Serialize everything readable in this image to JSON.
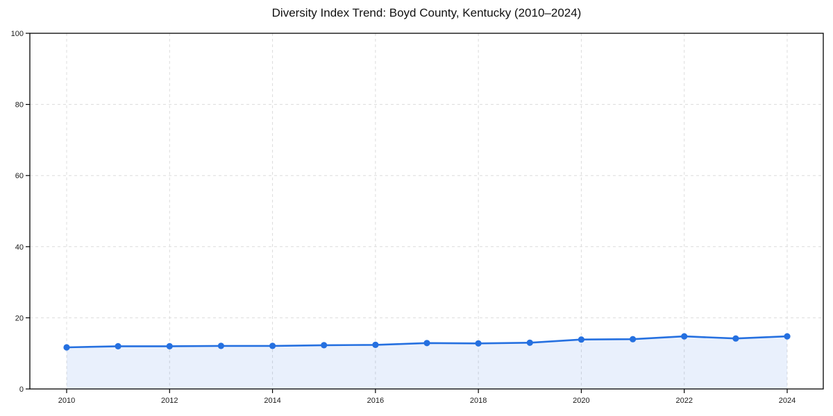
{
  "chart_data": {
    "type": "line",
    "title": "Diversity Index Trend: Boyd County, Kentucky (2010–2024)",
    "xlabel": "",
    "ylabel": "",
    "x": [
      2010,
      2011,
      2012,
      2013,
      2014,
      2015,
      2016,
      2017,
      2018,
      2019,
      2020,
      2021,
      2022,
      2023,
      2024
    ],
    "series": [
      {
        "name": "Diversity Index",
        "values": [
          11.7,
          12.0,
          12.0,
          12.1,
          12.1,
          12.3,
          12.4,
          12.9,
          12.8,
          13.0,
          13.9,
          14.0,
          14.8,
          14.2,
          14.8
        ]
      }
    ],
    "ylim": [
      0,
      100
    ],
    "yticks": [
      0,
      20,
      40,
      60,
      80,
      100
    ],
    "xticks": [
      2010,
      2012,
      2014,
      2016,
      2018,
      2020,
      2022,
      2024
    ],
    "grid": true,
    "grid_style": "dashed",
    "legend": "none",
    "area_fill": true,
    "markers": true,
    "style": {
      "line_color": "#2570e0",
      "marker_color": "#2570e0",
      "fill_color": "rgba(37,112,224,0.10)",
      "grid_color": "#dcdcdc",
      "spine_color": "#000000",
      "tick_color": "#000000",
      "tick_label_color": "#1a1a1a",
      "title_color": "#111111",
      "background": "#ffffff"
    }
  }
}
